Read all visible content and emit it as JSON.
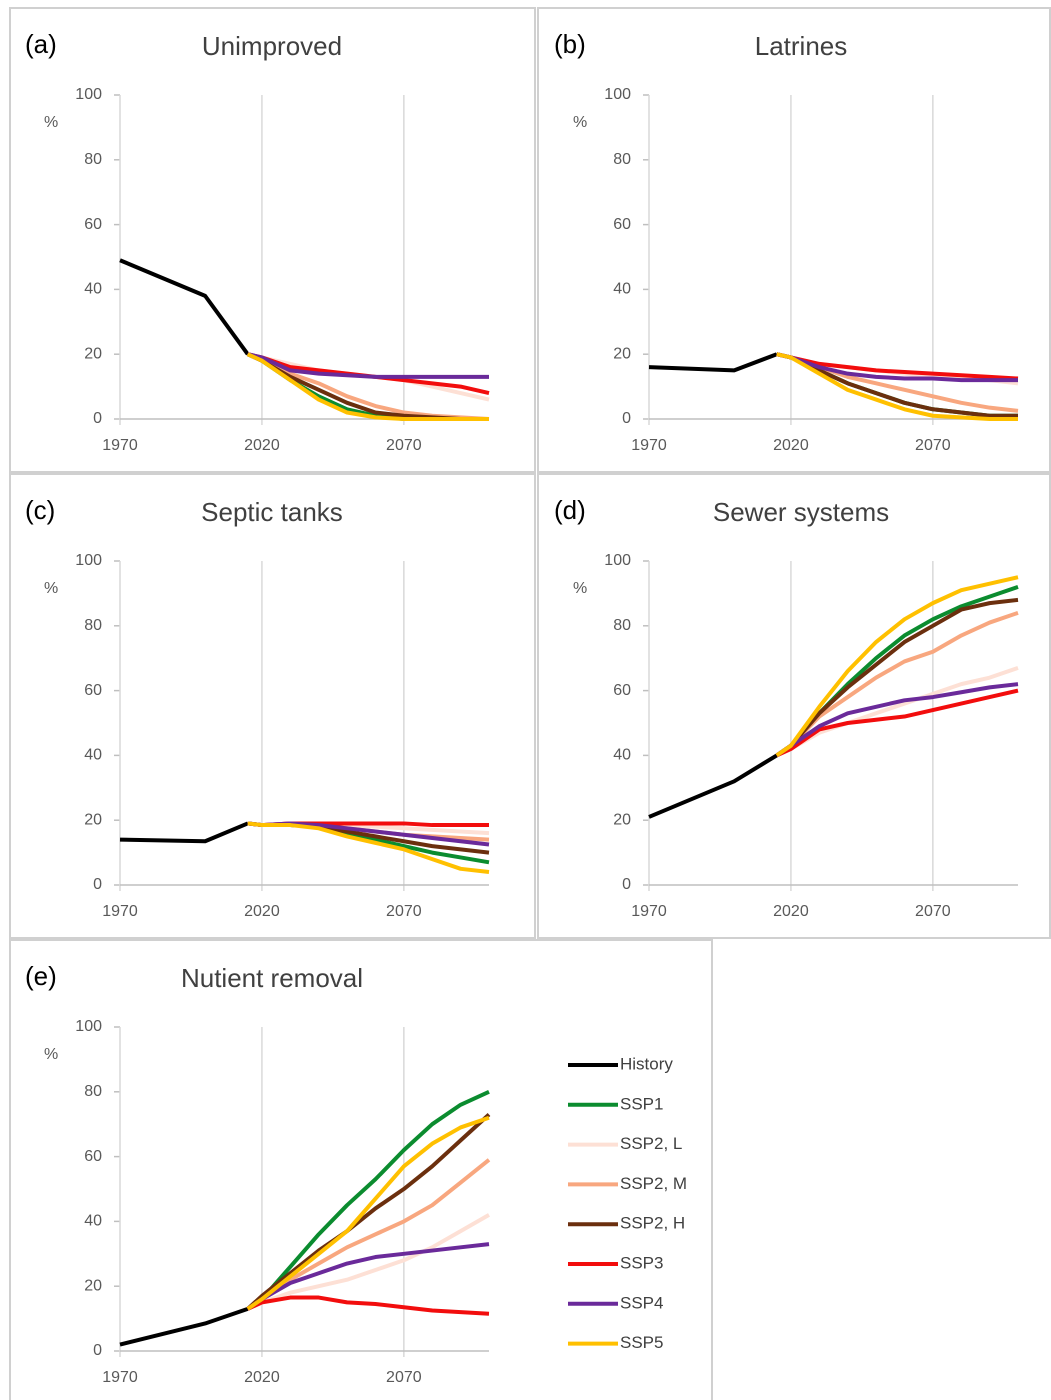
{
  "legend": [
    {
      "name": "History",
      "color": "#000000"
    },
    {
      "name": "SSP1",
      "color": "#0b8c2f"
    },
    {
      "name": "SSP2, L",
      "color": "#fde0d5"
    },
    {
      "name": "SSP2, M",
      "color": "#f8a77f"
    },
    {
      "name": "SSP2, H",
      "color": "#6b2f0e"
    },
    {
      "name": "SSP3",
      "color": "#f20d0d"
    },
    {
      "name": "SSP4",
      "color": "#6a2a9a"
    },
    {
      "name": "SSP5",
      "color": "#ffc000"
    }
  ],
  "chart_data": [
    {
      "type": "line",
      "panel": "(a)",
      "title": "Unimproved",
      "ylabel": "%",
      "x": [
        1970,
        2000,
        2015,
        2020,
        2030,
        2040,
        2050,
        2060,
        2070,
        2080,
        2090,
        2100
      ],
      "xlim": [
        1970,
        2100
      ],
      "xticks": [
        1970,
        2020,
        2070
      ],
      "ylim": [
        0,
        100
      ],
      "yticks": [
        0,
        20,
        40,
        60,
        80,
        100
      ],
      "series": [
        {
          "values": [
            49,
            38,
            20,
            null,
            null,
            null,
            null,
            null,
            null,
            null,
            null,
            null
          ]
        },
        {
          "values": [
            null,
            null,
            20,
            18,
            12,
            7,
            3,
            1,
            0,
            0,
            0,
            0
          ]
        },
        {
          "values": [
            null,
            null,
            20,
            19,
            17,
            15,
            14,
            13,
            12,
            10,
            8,
            6
          ]
        },
        {
          "values": [
            null,
            null,
            20,
            18,
            14,
            11,
            7,
            4,
            2,
            1,
            0.5,
            0
          ]
        },
        {
          "values": [
            null,
            null,
            20,
            18,
            13,
            9,
            5,
            2,
            1,
            0.5,
            0,
            0
          ]
        },
        {
          "values": [
            null,
            null,
            20,
            19,
            16,
            15,
            14,
            13,
            12,
            11,
            10,
            8
          ]
        },
        {
          "values": [
            null,
            null,
            20,
            19,
            15,
            14,
            13.5,
            13,
            13,
            13,
            13,
            13
          ]
        },
        {
          "values": [
            null,
            null,
            20,
            18,
            12,
            6,
            2,
            0.5,
            0,
            0,
            0,
            0
          ]
        }
      ]
    },
    {
      "type": "line",
      "panel": "(b)",
      "title": "Latrines",
      "ylabel": "%",
      "x": [
        1970,
        2000,
        2015,
        2020,
        2030,
        2040,
        2050,
        2060,
        2070,
        2080,
        2090,
        2100
      ],
      "xlim": [
        1970,
        2100
      ],
      "xticks": [
        1970,
        2020,
        2070
      ],
      "ylim": [
        0,
        100
      ],
      "yticks": [
        0,
        20,
        40,
        60,
        80,
        100
      ],
      "series": [
        {
          "values": [
            16,
            15,
            20,
            null,
            null,
            null,
            null,
            null,
            null,
            null,
            null,
            null
          ]
        },
        {
          "values": [
            null,
            null,
            20,
            19,
            15,
            11,
            8,
            5,
            3,
            2,
            1,
            1
          ]
        },
        {
          "values": [
            null,
            null,
            20,
            19,
            17,
            16,
            15,
            14,
            13,
            12.5,
            12,
            11
          ]
        },
        {
          "values": [
            null,
            null,
            20,
            19,
            16,
            13,
            11,
            9,
            7,
            5,
            3.5,
            2.5
          ]
        },
        {
          "values": [
            null,
            null,
            20,
            19,
            15,
            11,
            8,
            5,
            3,
            2,
            1,
            1
          ]
        },
        {
          "values": [
            null,
            null,
            20,
            19,
            17,
            16,
            15,
            14.5,
            14,
            13.5,
            13,
            12.5
          ]
        },
        {
          "values": [
            null,
            null,
            20,
            19,
            16,
            14,
            13,
            12.5,
            12.5,
            12,
            12,
            12
          ]
        },
        {
          "values": [
            null,
            null,
            20,
            19,
            14,
            9,
            6,
            3,
            1,
            0.5,
            0,
            0
          ]
        }
      ]
    },
    {
      "type": "line",
      "panel": "(c)",
      "title": "Septic tanks",
      "ylabel": "%",
      "x": [
        1970,
        2000,
        2015,
        2020,
        2030,
        2040,
        2050,
        2060,
        2070,
        2080,
        2090,
        2100
      ],
      "xlim": [
        1970,
        2100
      ],
      "xticks": [
        1970,
        2020,
        2070
      ],
      "ylim": [
        0,
        100
      ],
      "yticks": [
        0,
        20,
        40,
        60,
        80,
        100
      ],
      "series": [
        {
          "values": [
            14,
            13.5,
            19,
            null,
            null,
            null,
            null,
            null,
            null,
            null,
            null,
            null
          ]
        },
        {
          "values": [
            null,
            null,
            19,
            18.5,
            18.5,
            18,
            16,
            14,
            12,
            10,
            8.5,
            7
          ]
        },
        {
          "values": [
            null,
            null,
            19,
            18.5,
            19,
            19,
            18.5,
            18,
            17.5,
            17,
            16.5,
            16
          ]
        },
        {
          "values": [
            null,
            null,
            19,
            18.5,
            19,
            18.5,
            17.5,
            16.5,
            15.5,
            15,
            14.5,
            14
          ]
        },
        {
          "values": [
            null,
            null,
            19,
            18.5,
            18.5,
            18,
            16.5,
            15,
            13.5,
            12,
            11,
            10
          ]
        },
        {
          "values": [
            null,
            null,
            19,
            18.5,
            19,
            19,
            19,
            19,
            19,
            18.5,
            18.5,
            18.5
          ]
        },
        {
          "values": [
            null,
            null,
            19,
            18.5,
            19,
            18.5,
            17.5,
            16.5,
            15.5,
            14.5,
            13.5,
            12.5
          ]
        },
        {
          "values": [
            null,
            null,
            19,
            18.5,
            18.5,
            17.5,
            15,
            13,
            11,
            8,
            5,
            4
          ]
        }
      ]
    },
    {
      "type": "line",
      "panel": "(d)",
      "title": "Sewer systems",
      "ylabel": "%",
      "x": [
        1970,
        2000,
        2015,
        2020,
        2030,
        2040,
        2050,
        2060,
        2070,
        2080,
        2090,
        2100
      ],
      "xlim": [
        1970,
        2100
      ],
      "xticks": [
        1970,
        2020,
        2070
      ],
      "ylim": [
        0,
        100
      ],
      "yticks": [
        0,
        20,
        40,
        60,
        80,
        100
      ],
      "series": [
        {
          "values": [
            21,
            32,
            40,
            null,
            null,
            null,
            null,
            null,
            null,
            null,
            null,
            null
          ]
        },
        {
          "values": [
            null,
            null,
            40,
            43,
            53,
            62,
            70,
            77,
            82,
            86,
            89,
            92
          ]
        },
        {
          "values": [
            null,
            null,
            40,
            42,
            47,
            50,
            53,
            56,
            59,
            62,
            64,
            67
          ]
        },
        {
          "values": [
            null,
            null,
            40,
            43,
            52,
            58,
            64,
            69,
            72,
            77,
            81,
            84
          ]
        },
        {
          "values": [
            null,
            null,
            40,
            43,
            53,
            61,
            68,
            75,
            80,
            85,
            87,
            88
          ]
        },
        {
          "values": [
            null,
            null,
            40,
            42,
            48,
            50,
            51,
            52,
            54,
            56,
            58,
            60
          ]
        },
        {
          "values": [
            null,
            null,
            40,
            43,
            49,
            53,
            55,
            57,
            58,
            59.5,
            61,
            62
          ]
        },
        {
          "values": [
            null,
            null,
            40,
            43,
            55,
            66,
            75,
            82,
            87,
            91,
            93,
            95
          ]
        }
      ]
    },
    {
      "type": "line",
      "panel": "(e)",
      "title": "Nutient removal",
      "ylabel": "%",
      "x": [
        1970,
        2000,
        2015,
        2020,
        2030,
        2040,
        2050,
        2060,
        2070,
        2080,
        2090,
        2100
      ],
      "xlim": [
        1970,
        2100
      ],
      "xticks": [
        1970,
        2020,
        2070
      ],
      "ylim": [
        0,
        100
      ],
      "yticks": [
        0,
        20,
        40,
        60,
        80,
        100
      ],
      "series": [
        {
          "values": [
            2,
            8.5,
            13,
            null,
            null,
            null,
            null,
            null,
            null,
            null,
            null,
            null
          ]
        },
        {
          "values": [
            null,
            null,
            13,
            16,
            26,
            36,
            45,
            53,
            62,
            70,
            76,
            80
          ]
        },
        {
          "values": [
            null,
            null,
            13,
            15,
            18,
            20,
            22,
            25,
            28,
            32,
            37,
            42
          ]
        },
        {
          "values": [
            null,
            null,
            13,
            16,
            22,
            27,
            32,
            36,
            40,
            45,
            52,
            59
          ]
        },
        {
          "values": [
            null,
            null,
            13,
            17,
            24,
            31,
            37,
            44,
            50,
            57,
            65,
            73
          ]
        },
        {
          "values": [
            null,
            null,
            13,
            15,
            16.5,
            16.5,
            15,
            14.5,
            13.5,
            12.5,
            12,
            11.5
          ]
        },
        {
          "values": [
            null,
            null,
            13,
            16,
            21,
            24,
            27,
            29,
            30,
            31,
            32,
            33
          ]
        },
        {
          "values": [
            null,
            null,
            13,
            16,
            23,
            30,
            37,
            47,
            57,
            64,
            69,
            72
          ]
        }
      ]
    }
  ]
}
